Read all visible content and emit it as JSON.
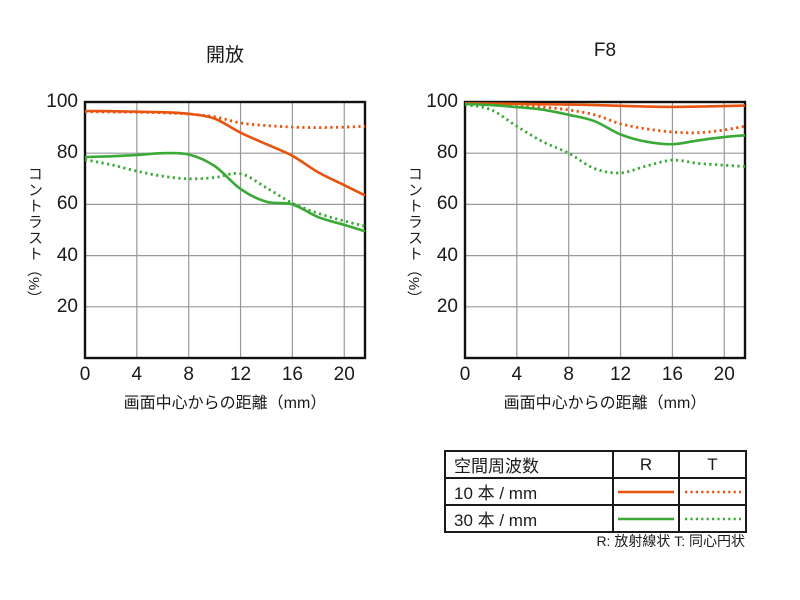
{
  "colors": {
    "orange": "#e8530e",
    "green": "#3aa935",
    "grid": "#999999",
    "frame": "#111111"
  },
  "chart_data": [
    {
      "type": "line",
      "title": "開放",
      "xlabel": "画面中心からの距離（mm）",
      "ylabel": "コントラスト（%）",
      "ylabel_kana": "コントラスト",
      "ylabel_unit": "（%）",
      "xlim": [
        0,
        21.6
      ],
      "ylim": [
        0,
        100
      ],
      "xticks": [
        0,
        4,
        8,
        12,
        16,
        20
      ],
      "yticks": [
        100,
        80,
        60,
        40,
        20
      ],
      "grid": true,
      "x": [
        0,
        2,
        4,
        6,
        8,
        10,
        12,
        14,
        16,
        18,
        20,
        21.6
      ],
      "series": [
        {
          "name": "10 本 / mm R",
          "color": "#e8530e",
          "style": "solid",
          "values": [
            96.5,
            96.4,
            96.2,
            96.0,
            95.4,
            93.5,
            88.0,
            83.5,
            79.0,
            72.5,
            67.5,
            63.5
          ]
        },
        {
          "name": "10 本 / mm T",
          "color": "#e8530e",
          "style": "dotted",
          "values": [
            96.2,
            96.1,
            96.0,
            95.8,
            95.3,
            94.2,
            91.8,
            90.8,
            90.2,
            90.0,
            90.2,
            90.5
          ]
        },
        {
          "name": "30 本 / mm R",
          "color": "#3aa935",
          "style": "solid",
          "values": [
            78.5,
            78.8,
            79.3,
            80.0,
            79.5,
            75.0,
            66.0,
            61.0,
            60.0,
            55.0,
            52.0,
            49.5
          ]
        },
        {
          "name": "30 本 / mm T",
          "color": "#3aa935",
          "style": "dotted",
          "values": [
            77.5,
            75.5,
            73.0,
            71.0,
            70.0,
            70.5,
            72.0,
            66.5,
            60.5,
            56.5,
            53.5,
            51.5
          ]
        }
      ]
    },
    {
      "type": "line",
      "title": "F8",
      "xlabel": "画面中心からの距離（mm）",
      "ylabel": "コントラスト（%）",
      "ylabel_kana": "コントラスト",
      "ylabel_unit": "（%）",
      "xlim": [
        0,
        21.6
      ],
      "ylim": [
        0,
        100
      ],
      "xticks": [
        0,
        4,
        8,
        12,
        16,
        20
      ],
      "yticks": [
        100,
        80,
        60,
        40,
        20
      ],
      "grid": true,
      "x": [
        0,
        2,
        4,
        6,
        8,
        10,
        12,
        14,
        16,
        18,
        20,
        21.6
      ],
      "series": [
        {
          "name": "10 本 / mm R",
          "color": "#e8530e",
          "style": "solid",
          "values": [
            99.5,
            99.4,
            99.3,
            99.1,
            99.0,
            98.8,
            98.5,
            98.2,
            98.1,
            98.2,
            98.4,
            98.6
          ]
        },
        {
          "name": "10 本 / mm T",
          "color": "#e8530e",
          "style": "dotted",
          "values": [
            99.3,
            99.1,
            98.7,
            98.0,
            96.9,
            95.0,
            91.5,
            89.5,
            88.3,
            88.0,
            89.1,
            90.5
          ]
        },
        {
          "name": "30 本 / mm R",
          "color": "#3aa935",
          "style": "solid",
          "values": [
            99.2,
            98.8,
            98.0,
            97.0,
            95.0,
            92.5,
            87.3,
            84.5,
            83.5,
            85.0,
            86.3,
            87.0
          ]
        },
        {
          "name": "30 本 / mm T",
          "color": "#3aa935",
          "style": "dotted",
          "values": [
            99.0,
            97.0,
            90.5,
            84.5,
            80.0,
            74.0,
            72.3,
            75.0,
            77.3,
            76.0,
            75.3,
            74.8
          ]
        }
      ]
    }
  ],
  "legend": {
    "header": [
      "空間周波数",
      "R",
      "T"
    ],
    "rows": [
      {
        "label": "10 本 / mm",
        "color": "#e8530e"
      },
      {
        "label": "30 本 / mm",
        "color": "#3aa935"
      }
    ],
    "footnote": "R: 放射線状  T: 同心円状"
  }
}
